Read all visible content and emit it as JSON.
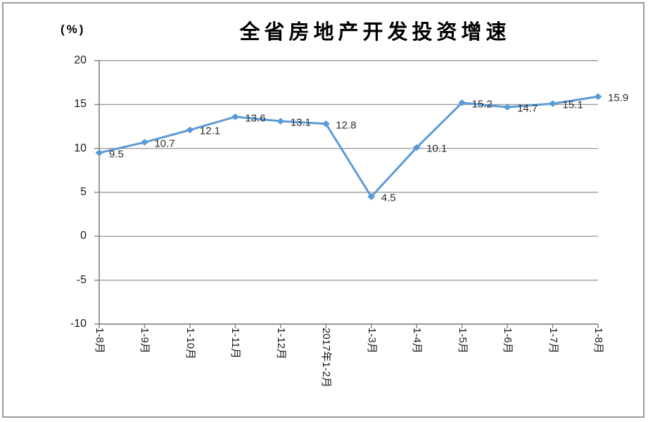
{
  "chart_data": {
    "type": "line",
    "title": "全省房地产开发投资增速",
    "unit_label": "(%)",
    "categories": [
      "1-8月",
      "1-9月",
      "1-10月",
      "1-11月",
      "1-12月",
      "2017年1-2月",
      "1-3月",
      "1-4月",
      "1-5月",
      "1-6月",
      "1-7月",
      "1-8月"
    ],
    "values": [
      9.5,
      10.7,
      12.1,
      13.6,
      13.1,
      12.8,
      4.5,
      10.1,
      15.2,
      14.7,
      15.1,
      15.9
    ],
    "data_labels": [
      "9.5",
      "10.7",
      "12.1",
      "13.6",
      "13.1",
      "12.8",
      "4.5",
      "10.1",
      "15.2",
      "14.7",
      "15.1",
      "15.9"
    ],
    "ylim": [
      -10,
      20
    ],
    "yticks": [
      20,
      15,
      10,
      5,
      0,
      -5,
      -10
    ],
    "grid": true,
    "legend": "none",
    "marker": "diamond",
    "colors": {
      "line": "#5b9bd5",
      "marker": "#5b9bd5",
      "gridline": "#8c8c8c",
      "axis": "#7f7f7f",
      "text": "#1a1a1a",
      "data_label": "#2b2b2b",
      "border": "#9a9a9a",
      "background": "#ffffff"
    }
  }
}
